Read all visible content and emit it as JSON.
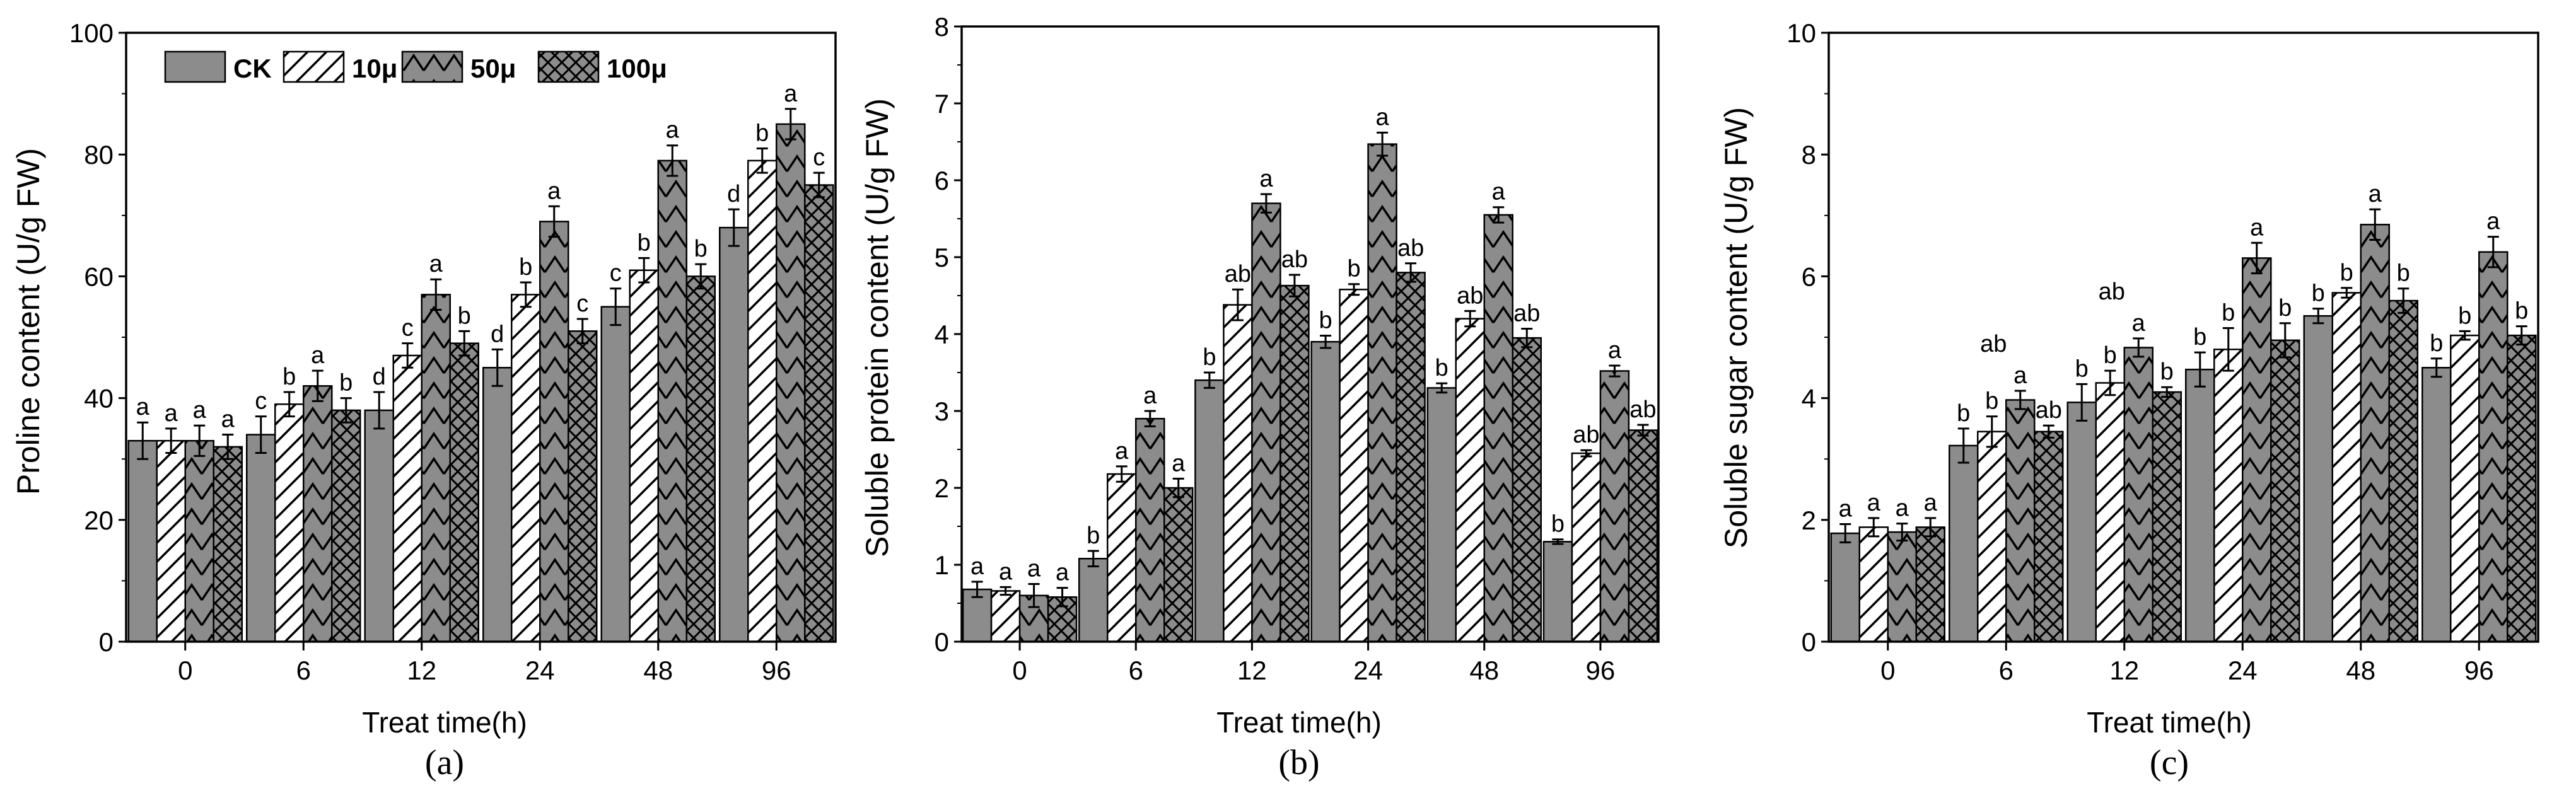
{
  "chart_data": [
    {
      "type": "bar",
      "panel": "(a)",
      "xlabel": "Treat time(h)",
      "ylabel": "Proline content (U/g FW)",
      "ylim": [
        0,
        100
      ],
      "yticks": [
        "0",
        "20",
        "40",
        "60",
        "80",
        "100"
      ],
      "categories": [
        "0",
        "6",
        "12",
        "24",
        "48",
        "96"
      ],
      "legend": {
        "position": "top-left",
        "entries": [
          "CK",
          "10μ",
          "50μ",
          "100μ"
        ]
      },
      "series": [
        {
          "name": "CK",
          "values": [
            33,
            34,
            38,
            45,
            55,
            68
          ],
          "errors": [
            3,
            3,
            3,
            3,
            3,
            3
          ],
          "labels": [
            "a",
            "c",
            "d",
            "d",
            "c",
            "d"
          ]
        },
        {
          "name": "10μ",
          "values": [
            33,
            39,
            47,
            57,
            61,
            79
          ],
          "errors": [
            2,
            2,
            2,
            2,
            2,
            2
          ],
          "labels": [
            "a",
            "b",
            "c",
            "b",
            "b",
            "b"
          ]
        },
        {
          "name": "50μ",
          "values": [
            33,
            42,
            57,
            69,
            79,
            85
          ],
          "errors": [
            2.5,
            2.5,
            2.5,
            2.5,
            2.5,
            2.5
          ],
          "labels": [
            "a",
            "a",
            "a",
            "a",
            "a",
            "a"
          ]
        },
        {
          "name": "100μ",
          "values": [
            32,
            38,
            49,
            51,
            60,
            75
          ],
          "errors": [
            2,
            2,
            2,
            2,
            2,
            2
          ],
          "labels": [
            "a",
            "b",
            "b",
            "c",
            "b",
            "c"
          ]
        }
      ]
    },
    {
      "type": "bar",
      "panel": "(b)",
      "xlabel": "Treat time(h)",
      "ylabel": "Soluble protein content  (U/g FW)",
      "ylim": [
        0,
        8
      ],
      "yticks": [
        "0",
        "1",
        "2",
        "3",
        "4",
        "5",
        "6",
        "7",
        "8"
      ],
      "categories": [
        "0",
        "6",
        "12",
        "24",
        "48",
        "96"
      ],
      "series": [
        {
          "name": "CK",
          "values": [
            0.68,
            1.08,
            3.4,
            3.9,
            3.3,
            1.3
          ],
          "errors": [
            0.1,
            0.1,
            0.1,
            0.08,
            0.06,
            0.03
          ],
          "labels": [
            "a",
            "b",
            "b",
            "b",
            "b",
            "b"
          ]
        },
        {
          "name": "10μ",
          "values": [
            0.66,
            2.18,
            4.38,
            4.58,
            4.2,
            2.45
          ],
          "errors": [
            0.05,
            0.1,
            0.2,
            0.07,
            0.1,
            0.04
          ],
          "labels": [
            "a",
            "a",
            "ab",
            "b",
            "ab",
            "ab"
          ]
        },
        {
          "name": "50μ",
          "values": [
            0.6,
            2.9,
            5.7,
            6.47,
            5.55,
            3.52
          ],
          "errors": [
            0.15,
            0.1,
            0.12,
            0.15,
            0.1,
            0.07
          ],
          "labels": [
            "a",
            "a",
            "a",
            "a",
            "a",
            "a"
          ]
        },
        {
          "name": "100μ",
          "values": [
            0.58,
            2.0,
            4.63,
            4.8,
            3.95,
            2.75
          ],
          "errors": [
            0.12,
            0.12,
            0.14,
            0.12,
            0.12,
            0.07
          ],
          "labels": [
            "a",
            "a",
            "ab",
            "ab",
            "ab",
            "ab"
          ]
        }
      ]
    },
    {
      "type": "bar",
      "panel": "(c)",
      "xlabel": "Treat time(h)",
      "ylabel": "Soluble sugar content (U/g FW)",
      "ylim": [
        0,
        10
      ],
      "yticks": [
        "0",
        "2",
        "4",
        "6",
        "8",
        "10"
      ],
      "categories": [
        "0",
        "6",
        "12",
        "24",
        "48",
        "96"
      ],
      "series": [
        {
          "name": "CK",
          "values": [
            1.78,
            3.22,
            3.93,
            4.47,
            5.35,
            4.5
          ],
          "errors": [
            0.15,
            0.28,
            0.3,
            0.28,
            0.12,
            0.15
          ],
          "labels": [
            "a",
            "b",
            "b",
            "b",
            "b",
            "b"
          ]
        },
        {
          "name": "10μ",
          "values": [
            1.88,
            3.45,
            4.25,
            4.8,
            5.73,
            5.03
          ],
          "errors": [
            0.15,
            0.25,
            0.2,
            0.35,
            0.08,
            0.07
          ],
          "labels": [
            "a",
            "b",
            "b",
            "b",
            "b",
            "b"
          ]
        },
        {
          "name": "50μ",
          "values": [
            1.8,
            3.97,
            4.83,
            6.3,
            6.85,
            6.4
          ],
          "errors": [
            0.14,
            0.15,
            0.15,
            0.25,
            0.25,
            0.25
          ],
          "labels": [
            "a",
            "a",
            "a",
            "a",
            "a",
            "a"
          ]
        },
        {
          "name": "100μ",
          "values": [
            1.88,
            3.45,
            4.1,
            4.95,
            5.6,
            5.03
          ],
          "errors": [
            0.15,
            0.1,
            0.08,
            0.28,
            0.2,
            0.15
          ],
          "labels": [
            "a",
            "ab",
            "b",
            "b",
            "b",
            "b"
          ]
        }
      ],
      "group_annotations": [
        {
          "category": "6",
          "text": "ab"
        },
        {
          "category": "12",
          "text": "ab"
        }
      ]
    }
  ]
}
